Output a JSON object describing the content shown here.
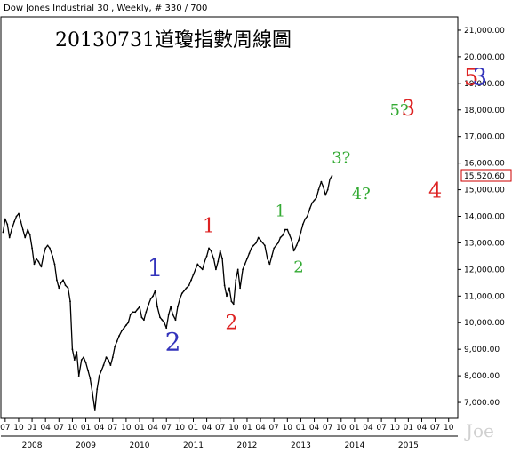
{
  "header": "Dow Jones Industrial 30 , Weekly, # 330 / 700",
  "watermark": "Joe",
  "chart_data": {
    "type": "line",
    "title": "20130731道瓊指數周線圖",
    "y_ticks": [
      {
        "v": 21000,
        "label": "21,000.00"
      },
      {
        "v": 20000,
        "label": "20,000.00"
      },
      {
        "v": 19000,
        "label": "19,000.00"
      },
      {
        "v": 18000,
        "label": "18,000.00"
      },
      {
        "v": 17000,
        "label": "17,000.00"
      },
      {
        "v": 16000,
        "label": "16,000.00"
      },
      {
        "v": 15000,
        "label": "15,000.00"
      },
      {
        "v": 14000,
        "label": "14,000.00"
      },
      {
        "v": 13000,
        "label": "13,000.00"
      },
      {
        "v": 12000,
        "label": "12,000.00"
      },
      {
        "v": 11000,
        "label": "11,000.00"
      },
      {
        "v": 10000,
        "label": "10,000.00"
      },
      {
        "v": 9000,
        "label": "9,000.00"
      },
      {
        "v": 8000,
        "label": "8,000.00"
      },
      {
        "v": 7000,
        "label": "7,000.00"
      }
    ],
    "ylim": [
      6400,
      21500
    ],
    "xlim": [
      2007.42,
      2015.92
    ],
    "last_value": "15,520.60",
    "month_ticks": [
      {
        "t": 2007.5,
        "label": "07"
      },
      {
        "t": 2007.75,
        "label": "10"
      },
      {
        "t": 2008.0,
        "label": "01"
      },
      {
        "t": 2008.25,
        "label": "04"
      },
      {
        "t": 2008.5,
        "label": "07"
      },
      {
        "t": 2008.75,
        "label": "10"
      },
      {
        "t": 2009.0,
        "label": "01"
      },
      {
        "t": 2009.25,
        "label": "04"
      },
      {
        "t": 2009.5,
        "label": "07"
      },
      {
        "t": 2009.75,
        "label": "10"
      },
      {
        "t": 2010.0,
        "label": "01"
      },
      {
        "t": 2010.25,
        "label": "04"
      },
      {
        "t": 2010.5,
        "label": "07"
      },
      {
        "t": 2010.75,
        "label": "10"
      },
      {
        "t": 2011.0,
        "label": "01"
      },
      {
        "t": 2011.25,
        "label": "04"
      },
      {
        "t": 2011.5,
        "label": "07"
      },
      {
        "t": 2011.75,
        "label": "10"
      },
      {
        "t": 2012.0,
        "label": "01"
      },
      {
        "t": 2012.25,
        "label": "04"
      },
      {
        "t": 2012.5,
        "label": "07"
      },
      {
        "t": 2012.75,
        "label": "10"
      },
      {
        "t": 2013.0,
        "label": "01"
      },
      {
        "t": 2013.25,
        "label": "04"
      },
      {
        "t": 2013.5,
        "label": "07"
      },
      {
        "t": 2013.75,
        "label": "10"
      },
      {
        "t": 2014.0,
        "label": "01"
      },
      {
        "t": 2014.25,
        "label": "04"
      },
      {
        "t": 2014.5,
        "label": "07"
      },
      {
        "t": 2014.75,
        "label": "10"
      },
      {
        "t": 2015.0,
        "label": "01"
      },
      {
        "t": 2015.25,
        "label": "04"
      },
      {
        "t": 2015.5,
        "label": "07"
      },
      {
        "t": 2015.75,
        "label": "10"
      }
    ],
    "year_ticks": [
      {
        "t": 2008.0,
        "label": "2008"
      },
      {
        "t": 2009.0,
        "label": "2009"
      },
      {
        "t": 2010.0,
        "label": "2010"
      },
      {
        "t": 2011.0,
        "label": "2011"
      },
      {
        "t": 2012.0,
        "label": "2012"
      },
      {
        "t": 2013.0,
        "label": "2013"
      },
      {
        "t": 2014.0,
        "label": "2014"
      },
      {
        "t": 2015.0,
        "label": "2015"
      }
    ],
    "series": [
      {
        "points": [
          [
            2007.46,
            13400
          ],
          [
            2007.5,
            13900
          ],
          [
            2007.54,
            13700
          ],
          [
            2007.58,
            13200
          ],
          [
            2007.62,
            13500
          ],
          [
            2007.67,
            13800
          ],
          [
            2007.71,
            14000
          ],
          [
            2007.75,
            14100
          ],
          [
            2007.79,
            13800
          ],
          [
            2007.83,
            13500
          ],
          [
            2007.87,
            13200
          ],
          [
            2007.92,
            13500
          ],
          [
            2007.96,
            13300
          ],
          [
            2008.0,
            12800
          ],
          [
            2008.04,
            12200
          ],
          [
            2008.08,
            12400
          ],
          [
            2008.12,
            12300
          ],
          [
            2008.17,
            12100
          ],
          [
            2008.21,
            12500
          ],
          [
            2008.25,
            12800
          ],
          [
            2008.29,
            12900
          ],
          [
            2008.33,
            12800
          ],
          [
            2008.38,
            12500
          ],
          [
            2008.42,
            12200
          ],
          [
            2008.46,
            11600
          ],
          [
            2008.5,
            11300
          ],
          [
            2008.54,
            11500
          ],
          [
            2008.58,
            11600
          ],
          [
            2008.62,
            11400
          ],
          [
            2008.67,
            11300
          ],
          [
            2008.71,
            10800
          ],
          [
            2008.75,
            9000
          ],
          [
            2008.79,
            8600
          ],
          [
            2008.83,
            8900
          ],
          [
            2008.87,
            8000
          ],
          [
            2008.92,
            8600
          ],
          [
            2008.96,
            8700
          ],
          [
            2009.0,
            8500
          ],
          [
            2009.04,
            8200
          ],
          [
            2009.08,
            7900
          ],
          [
            2009.12,
            7400
          ],
          [
            2009.17,
            6700
          ],
          [
            2009.21,
            7500
          ],
          [
            2009.25,
            8000
          ],
          [
            2009.29,
            8200
          ],
          [
            2009.33,
            8400
          ],
          [
            2009.38,
            8700
          ],
          [
            2009.42,
            8600
          ],
          [
            2009.46,
            8400
          ],
          [
            2009.5,
            8700
          ],
          [
            2009.54,
            9100
          ],
          [
            2009.58,
            9300
          ],
          [
            2009.62,
            9500
          ],
          [
            2009.67,
            9700
          ],
          [
            2009.71,
            9800
          ],
          [
            2009.75,
            9900
          ],
          [
            2009.79,
            10000
          ],
          [
            2009.83,
            10300
          ],
          [
            2009.87,
            10400
          ],
          [
            2009.92,
            10400
          ],
          [
            2009.96,
            10500
          ],
          [
            2010.0,
            10600
          ],
          [
            2010.04,
            10200
          ],
          [
            2010.08,
            10100
          ],
          [
            2010.12,
            10400
          ],
          [
            2010.17,
            10700
          ],
          [
            2010.21,
            10900
          ],
          [
            2010.25,
            11000
          ],
          [
            2010.29,
            11200
          ],
          [
            2010.33,
            10600
          ],
          [
            2010.38,
            10200
          ],
          [
            2010.42,
            10100
          ],
          [
            2010.46,
            10000
          ],
          [
            2010.5,
            9800
          ],
          [
            2010.54,
            10300
          ],
          [
            2010.58,
            10600
          ],
          [
            2010.62,
            10300
          ],
          [
            2010.67,
            10100
          ],
          [
            2010.71,
            10600
          ],
          [
            2010.75,
            10900
          ],
          [
            2010.79,
            11100
          ],
          [
            2010.83,
            11200
          ],
          [
            2010.87,
            11300
          ],
          [
            2010.92,
            11400
          ],
          [
            2010.96,
            11600
          ],
          [
            2011.0,
            11800
          ],
          [
            2011.04,
            12000
          ],
          [
            2011.08,
            12200
          ],
          [
            2011.12,
            12100
          ],
          [
            2011.17,
            12000
          ],
          [
            2011.21,
            12300
          ],
          [
            2011.25,
            12500
          ],
          [
            2011.29,
            12800
          ],
          [
            2011.33,
            12700
          ],
          [
            2011.38,
            12400
          ],
          [
            2011.42,
            12000
          ],
          [
            2011.46,
            12300
          ],
          [
            2011.5,
            12700
          ],
          [
            2011.54,
            12400
          ],
          [
            2011.58,
            11400
          ],
          [
            2011.62,
            11000
          ],
          [
            2011.67,
            11300
          ],
          [
            2011.71,
            10800
          ],
          [
            2011.75,
            10700
          ],
          [
            2011.79,
            11600
          ],
          [
            2011.83,
            12000
          ],
          [
            2011.87,
            11300
          ],
          [
            2011.92,
            12000
          ],
          [
            2011.96,
            12200
          ],
          [
            2012.0,
            12400
          ],
          [
            2012.04,
            12600
          ],
          [
            2012.08,
            12800
          ],
          [
            2012.12,
            12900
          ],
          [
            2012.17,
            13000
          ],
          [
            2012.21,
            13200
          ],
          [
            2012.25,
            13100
          ],
          [
            2012.29,
            13000
          ],
          [
            2012.33,
            12900
          ],
          [
            2012.38,
            12400
          ],
          [
            2012.42,
            12200
          ],
          [
            2012.46,
            12500
          ],
          [
            2012.5,
            12800
          ],
          [
            2012.54,
            12900
          ],
          [
            2012.58,
            13000
          ],
          [
            2012.62,
            13200
          ],
          [
            2012.67,
            13300
          ],
          [
            2012.71,
            13500
          ],
          [
            2012.75,
            13500
          ],
          [
            2012.79,
            13300
          ],
          [
            2012.83,
            13100
          ],
          [
            2012.87,
            12700
          ],
          [
            2012.92,
            12900
          ],
          [
            2012.96,
            13100
          ],
          [
            2013.0,
            13400
          ],
          [
            2013.04,
            13700
          ],
          [
            2013.08,
            13900
          ],
          [
            2013.12,
            14000
          ],
          [
            2013.17,
            14300
          ],
          [
            2013.21,
            14500
          ],
          [
            2013.25,
            14600
          ],
          [
            2013.29,
            14700
          ],
          [
            2013.33,
            15000
          ],
          [
            2013.38,
            15300
          ],
          [
            2013.42,
            15100
          ],
          [
            2013.46,
            14800
          ],
          [
            2013.5,
            15000
          ],
          [
            2013.54,
            15400
          ],
          [
            2013.58,
            15520
          ]
        ]
      }
    ],
    "annotations": [
      {
        "text": "1",
        "t": 2010.29,
        "v": 11750,
        "color": "#3333bb",
        "size": 28
      },
      {
        "text": "2",
        "t": 2010.62,
        "v": 8950,
        "color": "#3333bb",
        "size": 28
      },
      {
        "text": "1",
        "t": 2011.29,
        "v": 13400,
        "color": "#dd2222",
        "size": 22
      },
      {
        "text": "2",
        "t": 2011.71,
        "v": 9750,
        "color": "#dd2222",
        "size": 22
      },
      {
        "text": "1",
        "t": 2012.62,
        "v": 14000,
        "color": "#33aa33",
        "size": 18
      },
      {
        "text": "2",
        "t": 2012.96,
        "v": 11900,
        "color": "#33aa33",
        "size": 18
      },
      {
        "text": "3?",
        "t": 2013.75,
        "v": 16000,
        "color": "#33aa33",
        "size": 18
      },
      {
        "text": "4?",
        "t": 2014.12,
        "v": 14650,
        "color": "#33aa33",
        "size": 18
      },
      {
        "text": "5?",
        "t": 2014.83,
        "v": 17800,
        "color": "#33aa33",
        "size": 18
      },
      {
        "text": "3",
        "t": 2015.0,
        "v": 17800,
        "color": "#dd2222",
        "size": 24
      },
      {
        "text": "4",
        "t": 2015.5,
        "v": 14700,
        "color": "#dd2222",
        "size": 24
      },
      {
        "text": "5",
        "t": 2016.17,
        "v": 18950,
        "color": "#dd2222",
        "size": 26
      },
      {
        "text": "3",
        "t": 2016.33,
        "v": 18950,
        "color": "#3333bb",
        "size": 26
      }
    ]
  }
}
